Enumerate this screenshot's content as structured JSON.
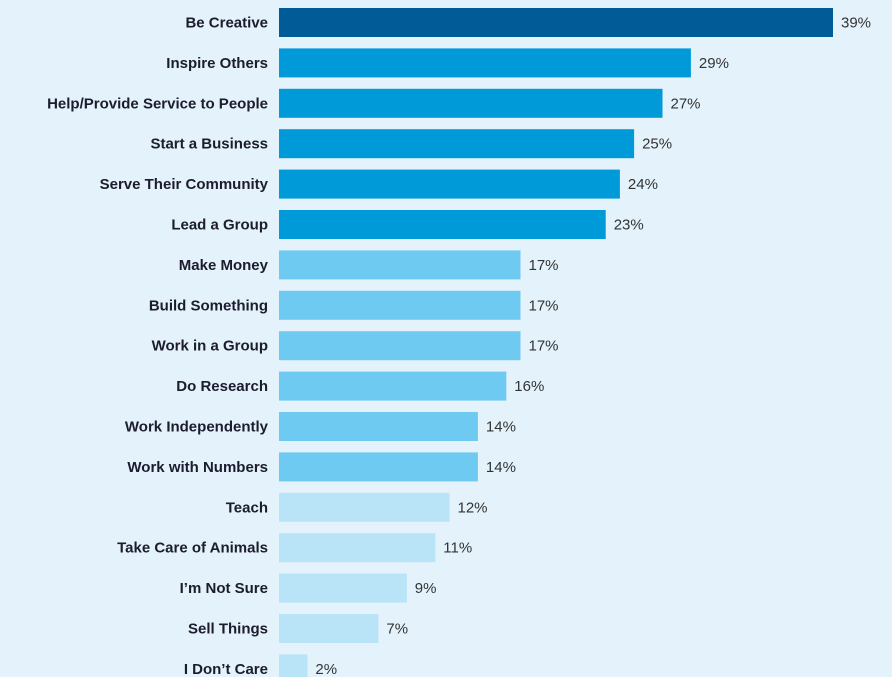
{
  "chart_data": {
    "type": "bar",
    "orientation": "horizontal",
    "title": "",
    "xlabel": "",
    "ylabel": "",
    "value_suffix": "%",
    "xlim": [
      0,
      39
    ],
    "grid": false,
    "categories": [
      "Be Creative",
      "Inspire Others",
      "Help/Provide Service to People",
      "Start a Business",
      "Serve Their Community",
      "Lead a Group",
      "Make Money",
      "Build Something",
      "Work in a Group",
      "Do Research",
      "Work Independently",
      "Work with Numbers",
      "Teach",
      "Take Care of Animals",
      "I’m Not Sure",
      "Sell Things",
      "I Don’t Care"
    ],
    "values": [
      39,
      29,
      27,
      25,
      24,
      23,
      17,
      17,
      17,
      16,
      14,
      14,
      12,
      11,
      9,
      7,
      2
    ],
    "tiers": [
      0,
      1,
      1,
      1,
      1,
      1,
      2,
      2,
      2,
      2,
      2,
      2,
      3,
      3,
      3,
      3,
      3
    ]
  },
  "colors": {
    "background": "#e3f2fb",
    "tiers": [
      "#005b97",
      "#009ad8",
      "#6fcaf2",
      "#b9e4f8"
    ],
    "label_text": "#1c1c2e",
    "value_text": "#333333"
  }
}
